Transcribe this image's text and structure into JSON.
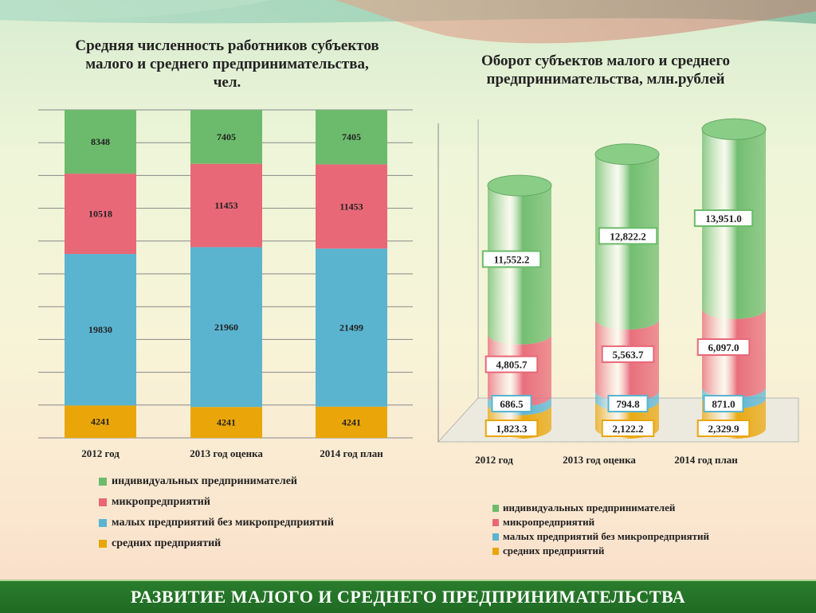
{
  "colors": {
    "individual": "#6cbb6c",
    "micro": "#e86878",
    "small": "#5ab4d0",
    "medium": "#eaa608"
  },
  "footer": {
    "text": "РАЗВИТИЕ МАЛОГО И СРЕДНЕГО ПРЕДПРИНИМАТЕЛЬСТВА"
  },
  "chart_data": [
    {
      "type": "bar",
      "stacked": true,
      "title": "Средняя численность работников субъектов малого и среднего предпринимательства, чел.",
      "categories": [
        "2012 год",
        "2013 год оценка",
        "2014 год план"
      ],
      "series": [
        {
          "name": "средних предприятий",
          "values": [
            4241,
            4241,
            4241
          ]
        },
        {
          "name": "малых предприятий без микропредприятий",
          "values": [
            19830,
            21960,
            21499
          ]
        },
        {
          "name": "микропредприятий",
          "values": [
            10518,
            11453,
            11453
          ]
        },
        {
          "name": "индивидуальных предпринимателей",
          "values": [
            8348,
            7405,
            7405
          ]
        }
      ],
      "legend_order": [
        "индивидуальных предпринимателей",
        "микропредприятий",
        "малых предприятий без микропредприятий",
        "средних предприятий"
      ],
      "grid": true,
      "legend_position": "bottom"
    },
    {
      "type": "bar",
      "stacked": true,
      "style": "3d-cylinder",
      "title": "Оборот субъектов малого и среднего предпринимательства, млн.рублей",
      "categories": [
        "2012 год",
        "2013 год оценка",
        "2014 год план"
      ],
      "series": [
        {
          "name": "средних предприятий",
          "values": [
            1823.3,
            2122.2,
            2329.9
          ],
          "labels": [
            "1,823.3",
            "2,122.2",
            "2,329.9"
          ]
        },
        {
          "name": "малых предприятий без микропредприятий",
          "values": [
            686.5,
            794.8,
            871.0
          ],
          "labels": [
            "686.5",
            "794.8",
            "871.0"
          ]
        },
        {
          "name": "микропредприятий",
          "values": [
            4805.7,
            5563.7,
            6097.0
          ],
          "labels": [
            "4,805.7",
            "5,563.7",
            "6,097.0"
          ]
        },
        {
          "name": "индивидуальных предпринимателей",
          "values": [
            11552.2,
            12822.2,
            13951.0
          ],
          "labels": [
            "11,552.2",
            "12,822.2",
            "13,951.0"
          ]
        }
      ],
      "legend_order": [
        "индивидуальных предпринимателей",
        "микропредприятий",
        "малых предприятий без микропредприятий",
        "средних предприятий"
      ],
      "legend_position": "bottom"
    }
  ]
}
